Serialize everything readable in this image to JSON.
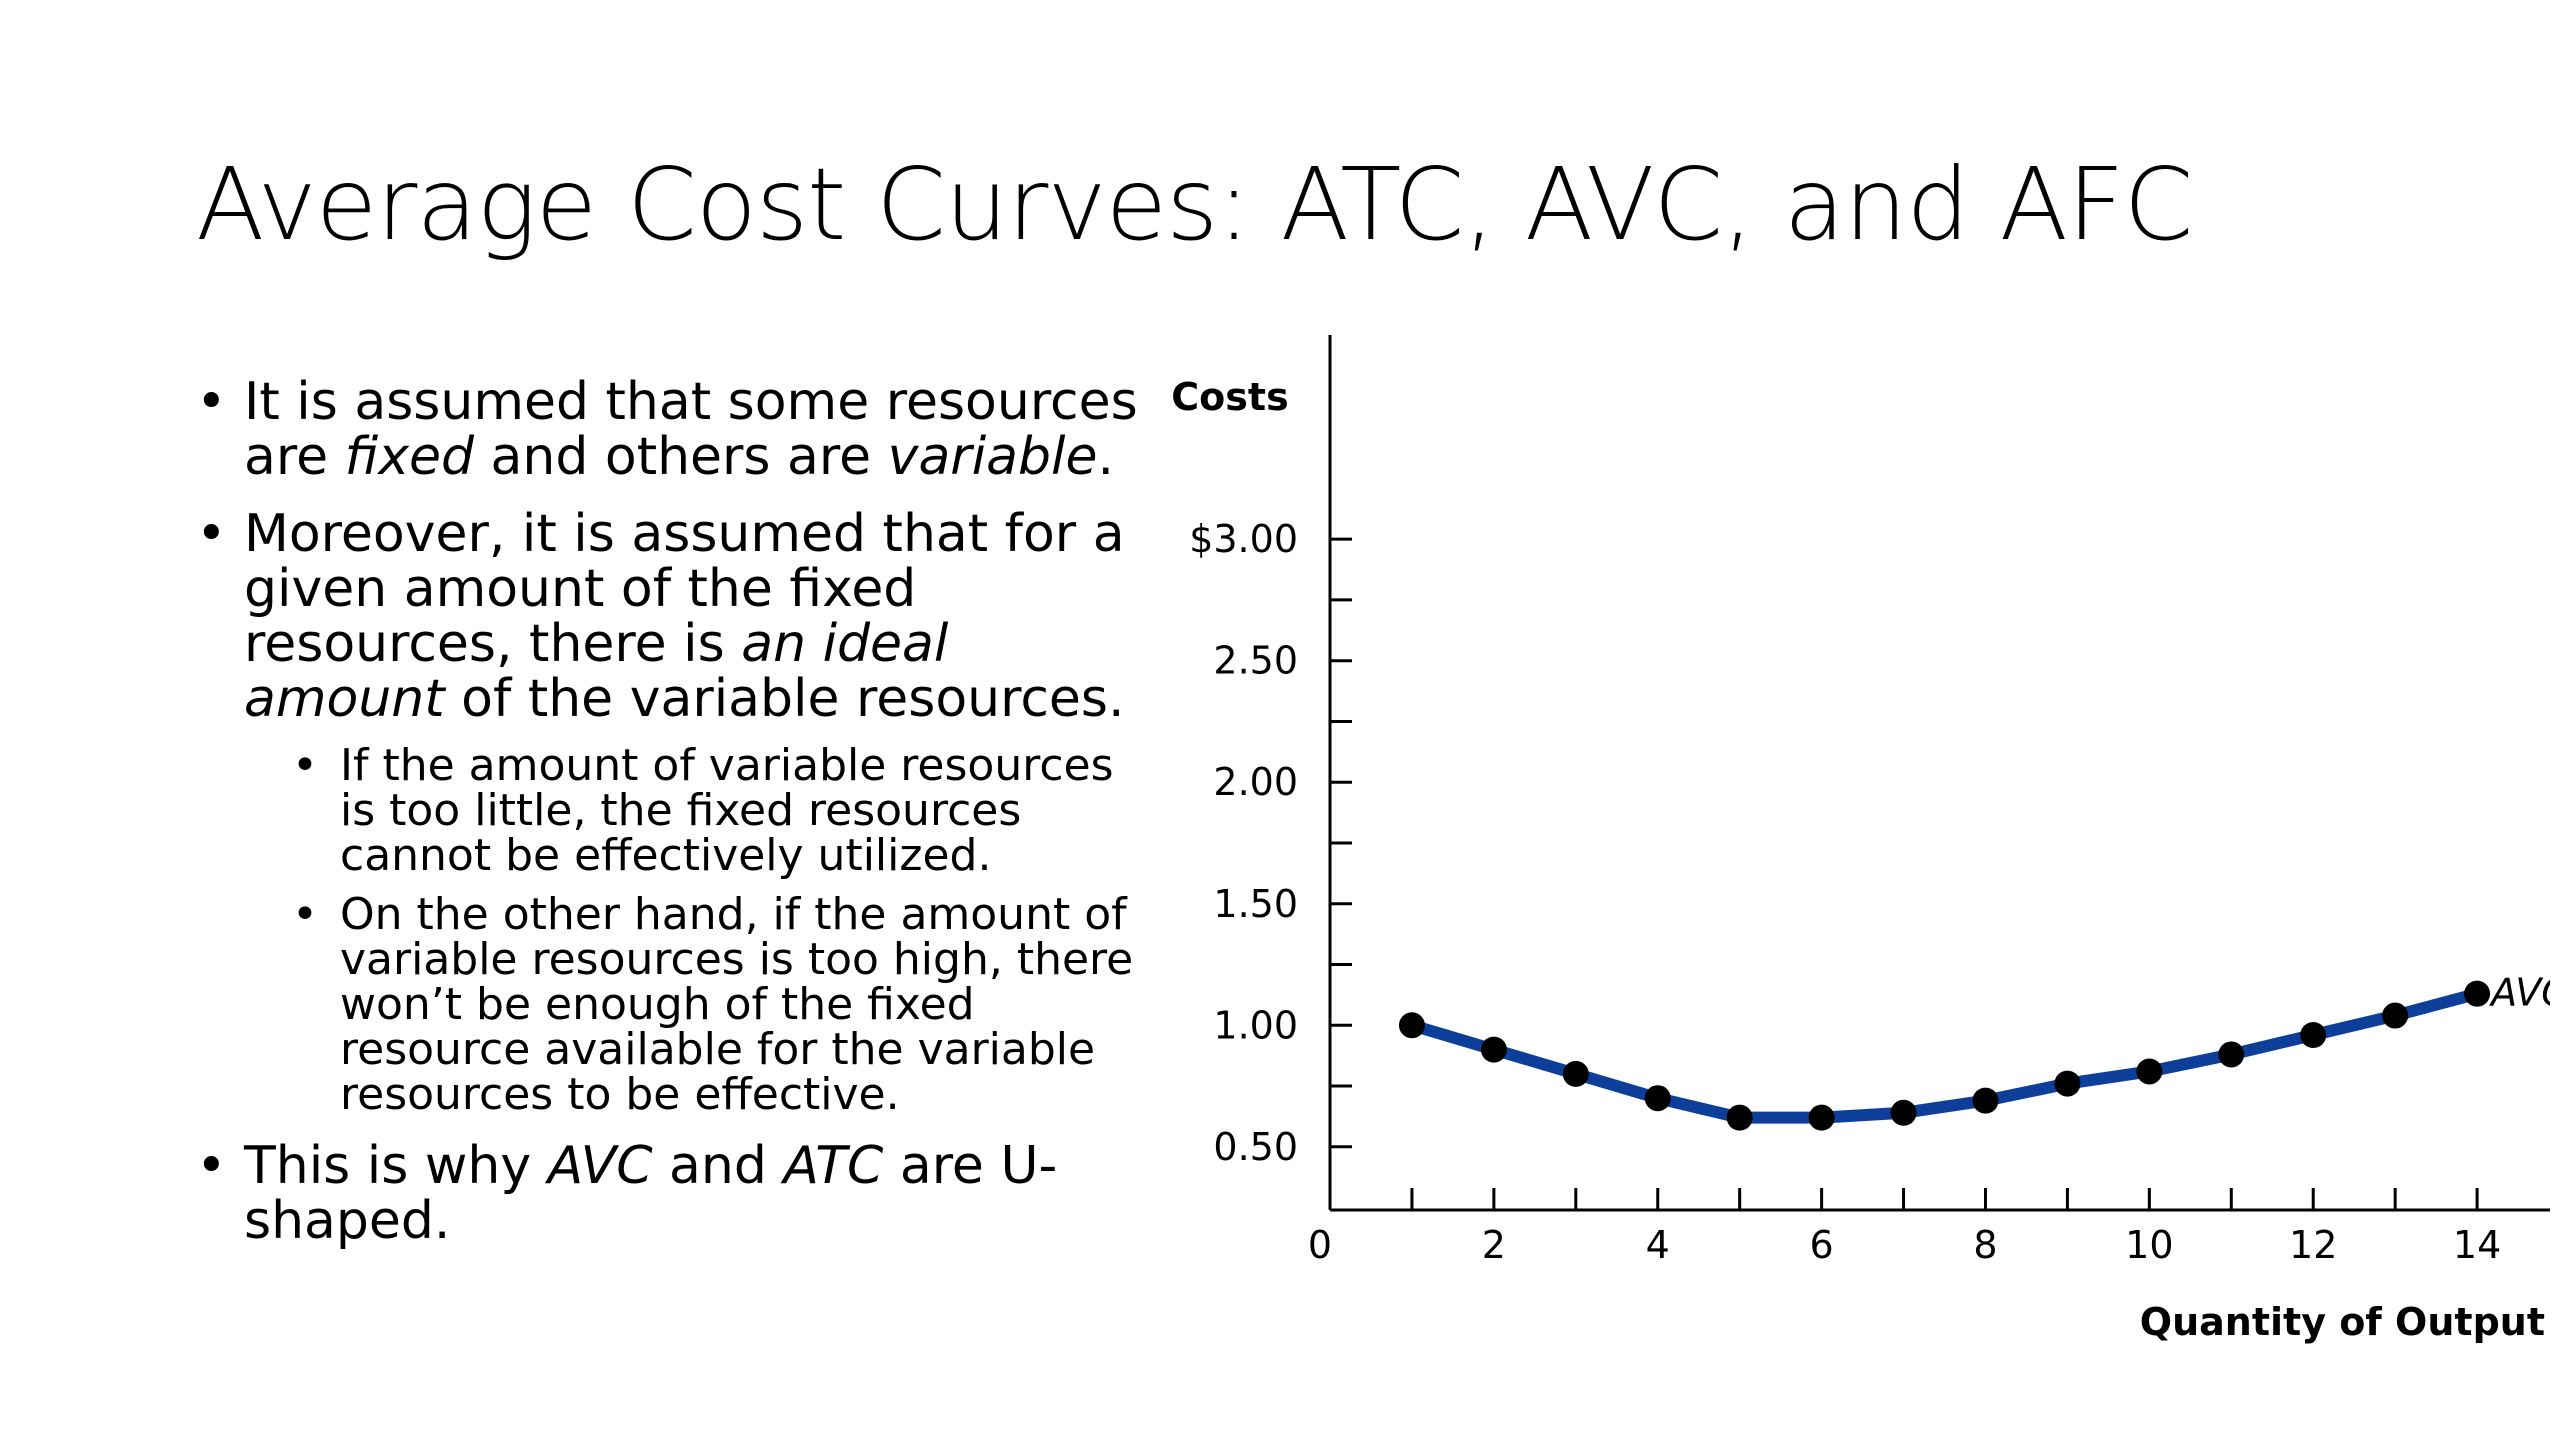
{
  "slide": {
    "title": "Average Cost Curves: ATC, AVC, and AFC"
  },
  "bullets": {
    "b1": {
      "part1": "It is assumed that some resources are ",
      "em1": "fixed",
      "part2": " and others are ",
      "em2": "variable",
      "part3": "."
    },
    "b2": {
      "part1": "Moreover, it is assumed that for a given amount of the fixed resources, there is ",
      "em1": "an ideal amount",
      "part2": " of the variable resources."
    },
    "b2_sub1": "If the amount of variable resources is too little, the fixed resources cannot be effectively utilized.",
    "b2_sub2": "On the other hand, if the amount of variable resources is too high, there won’t be enough of the fixed resource available for the variable resources to be effective.",
    "b3": {
      "part1": "This is why ",
      "em1": "AVC",
      "part2": " and ",
      "em2": "ATC",
      "part3": " are U-shaped."
    }
  },
  "chart_data": {
    "type": "line",
    "xlabel": "Quantity of Output",
    "ylabel": "Costs",
    "xlim": [
      0,
      15.5
    ],
    "ylim": [
      0.24,
      3.84
    ],
    "x_ticks": [
      0,
      2,
      4,
      6,
      8,
      10,
      12,
      14
    ],
    "x_tick_labels": [
      "0",
      "2",
      "4",
      "6",
      "8",
      "10",
      "12",
      "14"
    ],
    "x_minor_ticks": [
      1,
      3,
      5,
      7,
      9,
      11,
      13
    ],
    "y_ticks": [
      0.5,
      1.0,
      1.5,
      2.0,
      2.5,
      3.0
    ],
    "y_tick_labels": [
      "0.50",
      "1.00",
      "1.50",
      "2.00",
      "2.50",
      "$3.00"
    ],
    "y_minor_ticks": [
      0.75,
      1.25,
      1.75,
      2.25,
      2.75
    ],
    "grid": false,
    "series": [
      {
        "name": "AVC",
        "color": "#0d3f9a",
        "marker_color": "#000000",
        "x": [
          1,
          2,
          3,
          4,
          5,
          6,
          7,
          8,
          9,
          10,
          11,
          12,
          13,
          14
        ],
        "y": [
          1.0,
          0.9,
          0.8,
          0.7,
          0.62,
          0.62,
          0.64,
          0.69,
          0.76,
          0.81,
          0.88,
          0.96,
          1.04,
          1.13
        ]
      }
    ]
  }
}
